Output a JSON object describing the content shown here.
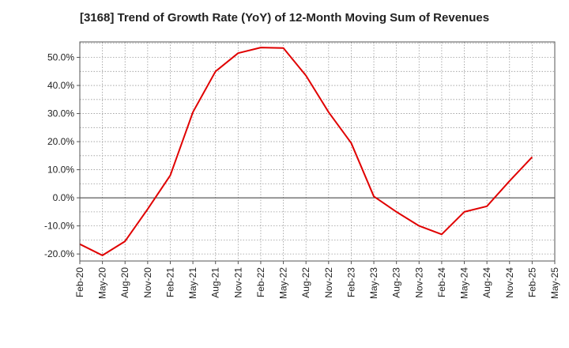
{
  "chart_data": {
    "type": "line",
    "title": "[3168]  Trend of Growth Rate (YoY) of 12-Month Moving Sum of Revenues",
    "xlabel": "",
    "ylabel": "",
    "ylim": [
      -22.5,
      55.5
    ],
    "y_ticks": [
      -20,
      -10,
      0,
      10,
      20,
      30,
      40,
      50
    ],
    "y_tick_labels": [
      "-20.0%",
      "-10.0%",
      "0.0%",
      "10.0%",
      "20.0%",
      "30.0%",
      "40.0%",
      "50.0%"
    ],
    "x_tick_labels": [
      "Feb-20",
      "May-20",
      "Aug-20",
      "Nov-20",
      "Feb-21",
      "May-21",
      "Aug-21",
      "Nov-21",
      "Feb-22",
      "May-22",
      "Aug-22",
      "Nov-22",
      "Feb-23",
      "May-23",
      "Aug-23",
      "Nov-23",
      "Feb-24",
      "May-24",
      "Aug-24",
      "Nov-24",
      "Feb-25",
      "May-25"
    ],
    "grid": true,
    "series": [
      {
        "values": [
          -16.5,
          -20.5,
          -15.5,
          -4.0,
          8.0,
          30.5,
          45.0,
          51.5,
          53.5,
          53.3,
          43.5,
          30.5,
          19.5,
          0.5,
          -5.0,
          -10.0,
          -13.0,
          -5.0,
          -3.0,
          6.0,
          14.5
        ],
        "color": "#e00000"
      }
    ]
  }
}
